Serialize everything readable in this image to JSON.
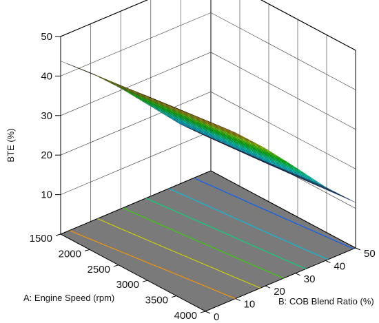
{
  "chart_data": {
    "type": "surface3d",
    "title": "",
    "zlabel": "BTE (%)",
    "xlabel": "A: Engine Speed (rpm)",
    "ylabel": "B: COB Blend Ratio (%)",
    "x_ticks": [
      "1500",
      "2000",
      "2500",
      "3000",
      "3500",
      "4000"
    ],
    "y_ticks": [
      "0",
      "10",
      "20",
      "30",
      "40",
      "50"
    ],
    "z_ticks": [
      "10",
      "20",
      "30",
      "40",
      "50"
    ],
    "xlim": [
      1500,
      4000
    ],
    "ylim": [
      0,
      50
    ],
    "zlim": [
      0,
      50
    ],
    "grid": true,
    "colormap": [
      "#0000ff",
      "#00a5ff",
      "#00e0c0",
      "#00d000",
      "#c8e000",
      "#ffa000",
      "#ff1a00"
    ],
    "floor_color": "#7a7a7a",
    "surface": {
      "x": [
        1500,
        2000,
        2500,
        3000,
        3500,
        4000
      ],
      "y": [
        0,
        10,
        20,
        30,
        40,
        50
      ],
      "z": [
        [
          43.8,
          44.7,
          45.6,
          46.6,
          47.5,
          48.3
        ],
        [
          37.6,
          38.4,
          39.3,
          40.2,
          41.1,
          42.0
        ],
        [
          30.5,
          31.3,
          32.1,
          33.0,
          33.9,
          34.8
        ],
        [
          22.7,
          23.5,
          24.3,
          25.1,
          25.9,
          26.8
        ],
        [
          14.9,
          15.6,
          16.3,
          17.0,
          17.8,
          18.6
        ],
        [
          8.2,
          8.8,
          9.4,
          10.1,
          10.8,
          11.5
        ]
      ]
    },
    "contours_on_floor": true
  }
}
